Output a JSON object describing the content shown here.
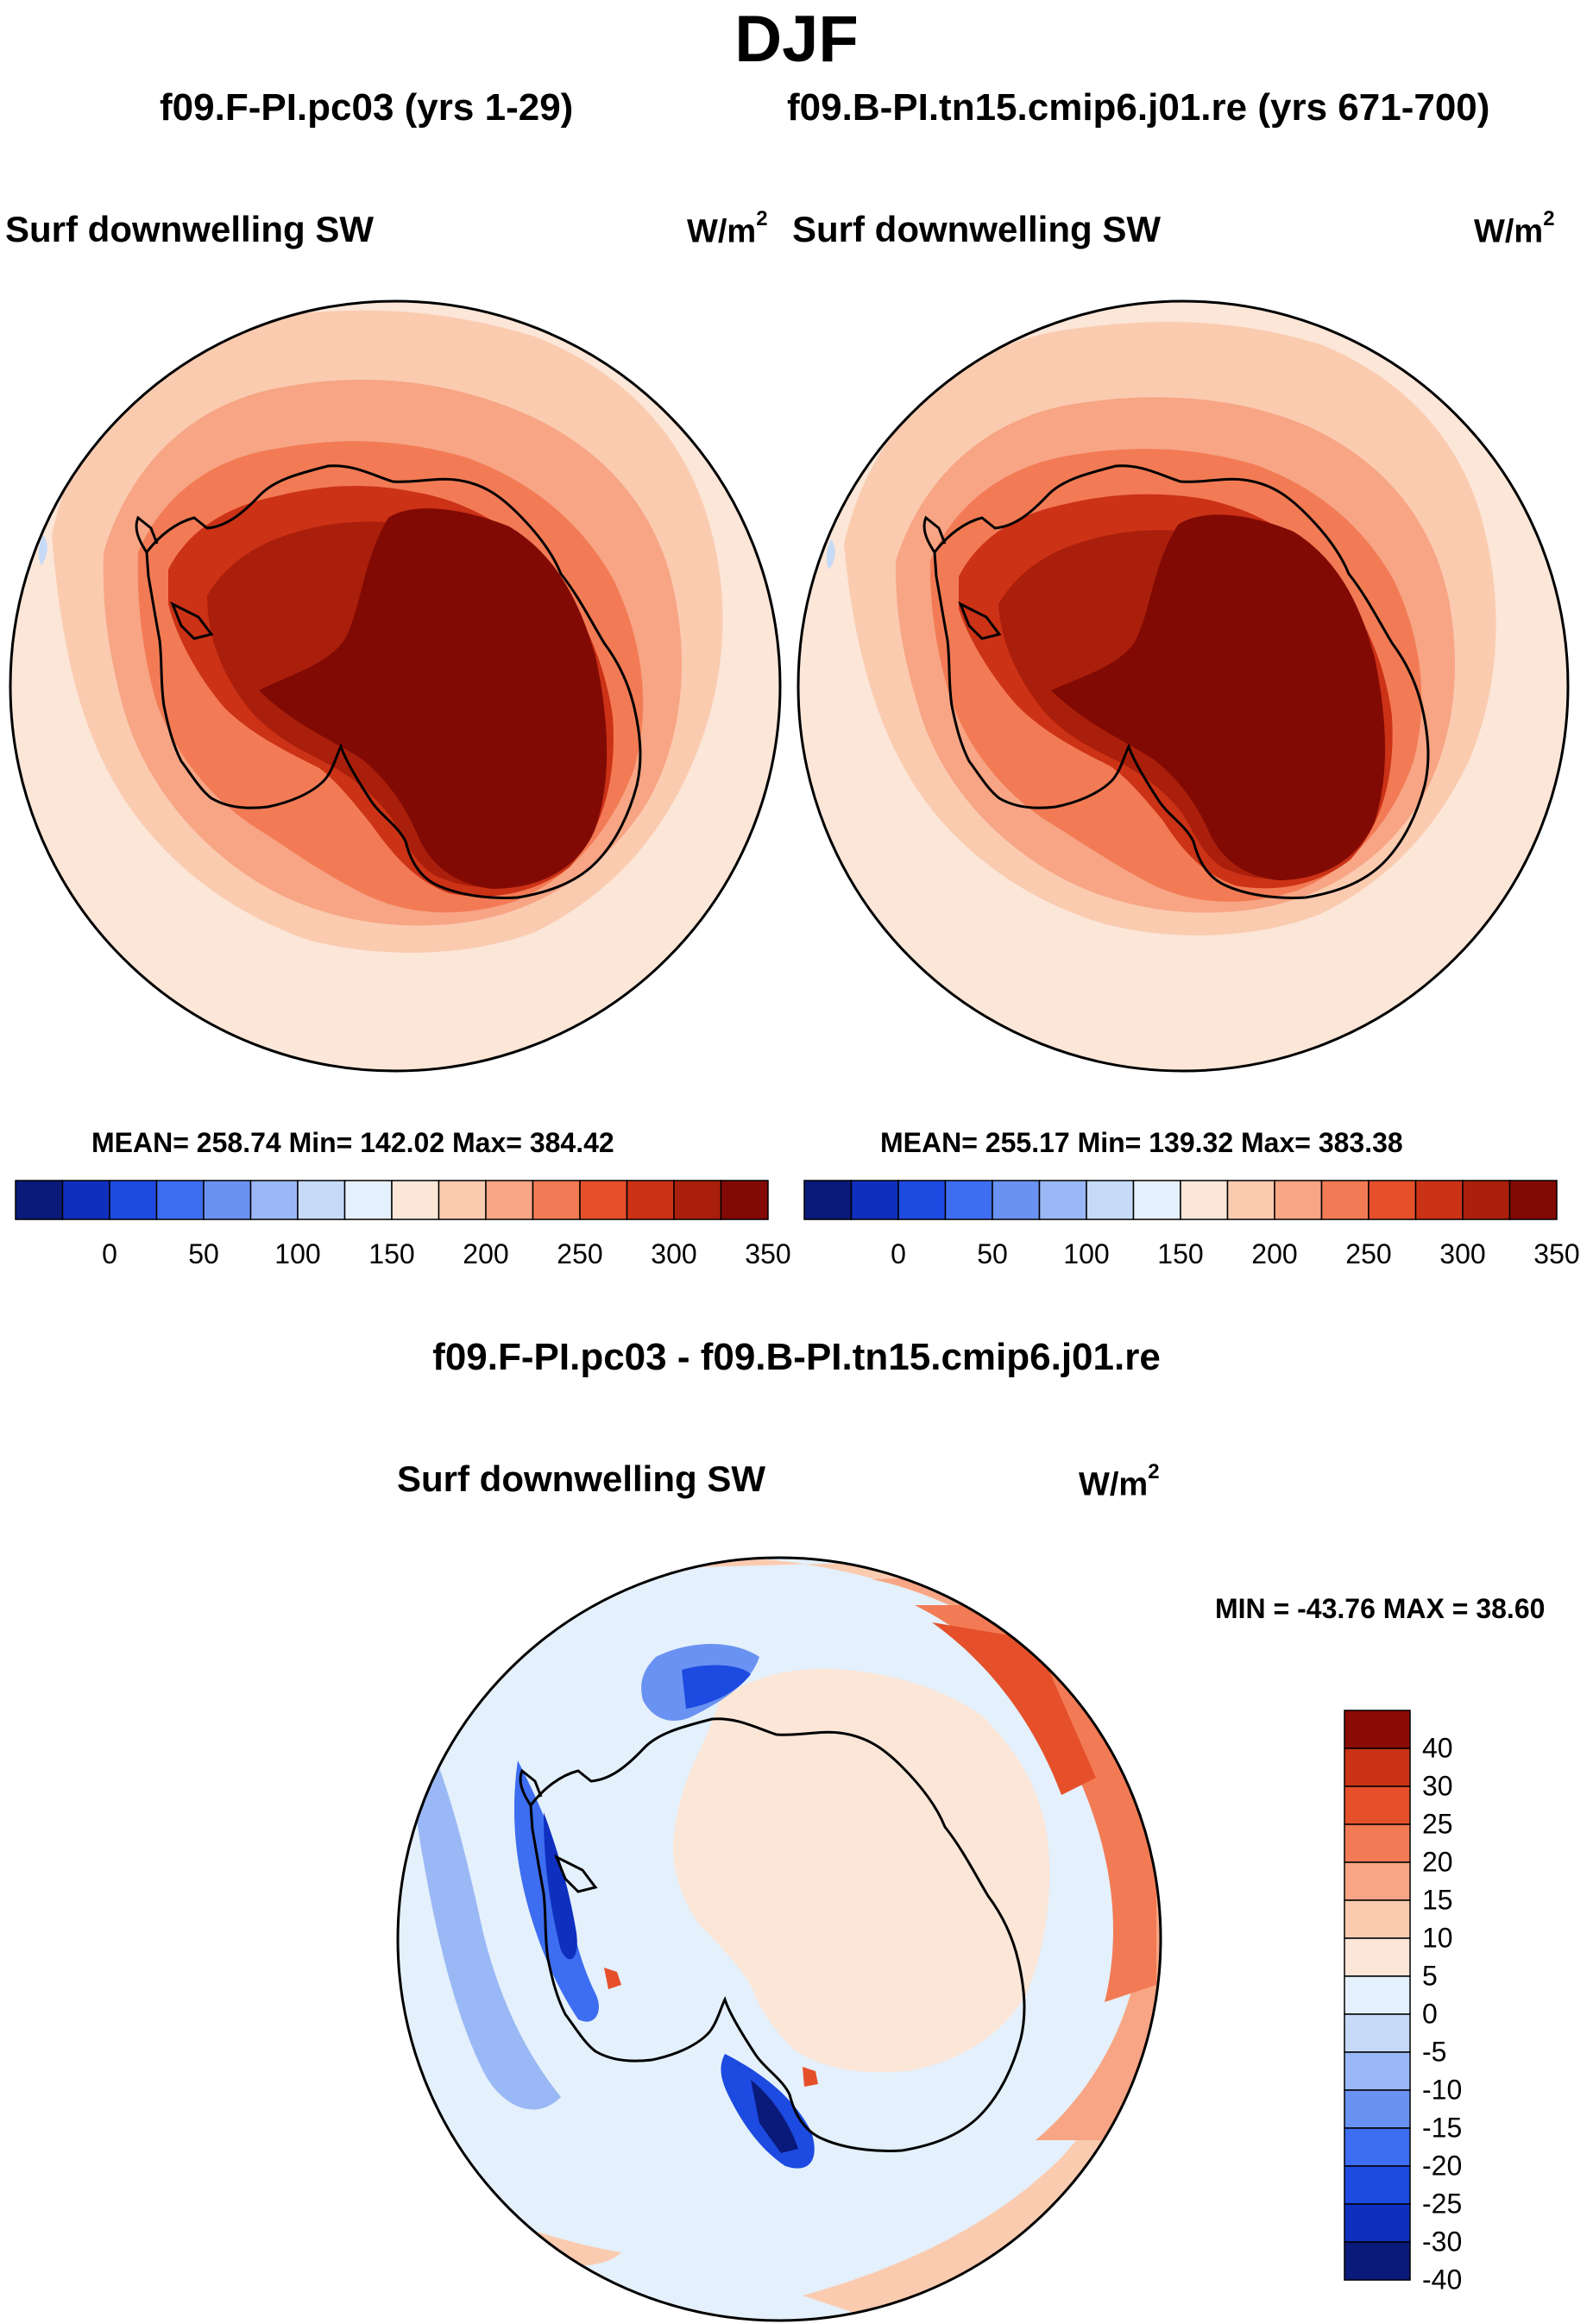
{
  "title": "DJF",
  "panels": {
    "left": {
      "case": "f09.F-PI.pc03 (yrs 1-29)",
      "variable": "Surf downwelling SW",
      "units_base": "W/m",
      "units_exp": "2",
      "stats": "MEAN= 258.74  Min= 142.02  Max= 384.42"
    },
    "right": {
      "case": "f09.B-PI.tn15.cmip6.j01.re (yrs 671-700)",
      "variable": "Surf downwelling SW",
      "units_base": "W/m",
      "units_exp": "2",
      "stats": "MEAN= 255.17  Min= 139.32  Max= 383.38"
    },
    "diff": {
      "case": "f09.F-PI.pc03 - f09.B-PI.tn15.cmip6.j01.re",
      "variable": "Surf downwelling SW",
      "units_base": "W/m",
      "units_exp": "2",
      "stats": "MIN = -43.76 MAX =  38.60"
    }
  },
  "colors": {
    "sequential": [
      "#0a1a7a",
      "#0f2fbf",
      "#1d4ae0",
      "#3d6df0",
      "#6a92f2",
      "#9ab8f5",
      "#c6daf8",
      "#e4f0fb",
      "#fbe6d8",
      "#fbcbb0",
      "#f7a585",
      "#f27b55",
      "#e5502b",
      "#cc3216",
      "#aa1f0b",
      "#820a04"
    ],
    "diverging": [
      "#0a1a7a",
      "#0f2fbf",
      "#1d4ae0",
      "#3d6df0",
      "#6a92f2",
      "#9ab8f5",
      "#c6daf8",
      "#e4f0fb",
      "#fbe6d8",
      "#fbcbb0",
      "#f7a585",
      "#f27b55",
      "#e5502b",
      "#cc3216",
      "#8a0c05"
    ]
  },
  "chart_data": [
    {
      "type": "heatmap",
      "subtype": "south-polar-stereographic-contour",
      "title": "f09.F-PI.pc03 (yrs 1-29)",
      "variable": "Surf downwelling SW",
      "units": "W/m2",
      "mean": 258.74,
      "min": 142.02,
      "max": 384.42,
      "colorbar_ticks": [
        0,
        50,
        100,
        150,
        200,
        250,
        300,
        350
      ],
      "levels": [
        -50,
        -25,
        0,
        25,
        50,
        75,
        100,
        125,
        150,
        175,
        200,
        225,
        250,
        275,
        300,
        325,
        350
      ],
      "pattern": {
        "antarctica_interior": 375,
        "coastal_ring": 290,
        "southern_ocean": 230,
        "outer": 205
      }
    },
    {
      "type": "heatmap",
      "subtype": "south-polar-stereographic-contour",
      "title": "f09.B-PI.tn15.cmip6.j01.re (yrs 671-700)",
      "variable": "Surf downwelling SW",
      "units": "W/m2",
      "mean": 255.17,
      "min": 139.32,
      "max": 383.38,
      "colorbar_ticks": [
        0,
        50,
        100,
        150,
        200,
        250,
        300,
        350
      ],
      "levels": [
        -50,
        -25,
        0,
        25,
        50,
        75,
        100,
        125,
        150,
        175,
        200,
        225,
        250,
        275,
        300,
        325,
        350
      ],
      "pattern": {
        "antarctica_interior": 374,
        "coastal_ring": 285,
        "southern_ocean": 225,
        "outer": 202
      }
    },
    {
      "type": "heatmap",
      "subtype": "south-polar-stereographic-contour-difference",
      "title": "f09.F-PI.pc03 - f09.B-PI.tn15.cmip6.j01.re",
      "variable": "Surf downwelling SW",
      "units": "W/m2",
      "min": -43.76,
      "max": 38.6,
      "colorbar_labels": [
        "-40",
        "-30",
        "-25",
        "-20",
        "-15",
        "-10",
        "-5",
        "0",
        "5",
        "10",
        "15",
        "20",
        "25",
        "30",
        "40"
      ],
      "pattern": {
        "antarctica_interior": 2,
        "east_sector_ocean": 25,
        "west_peninsula_ocean": -25,
        "ross_sea": -35,
        "weddell_gyre": -12
      }
    }
  ]
}
